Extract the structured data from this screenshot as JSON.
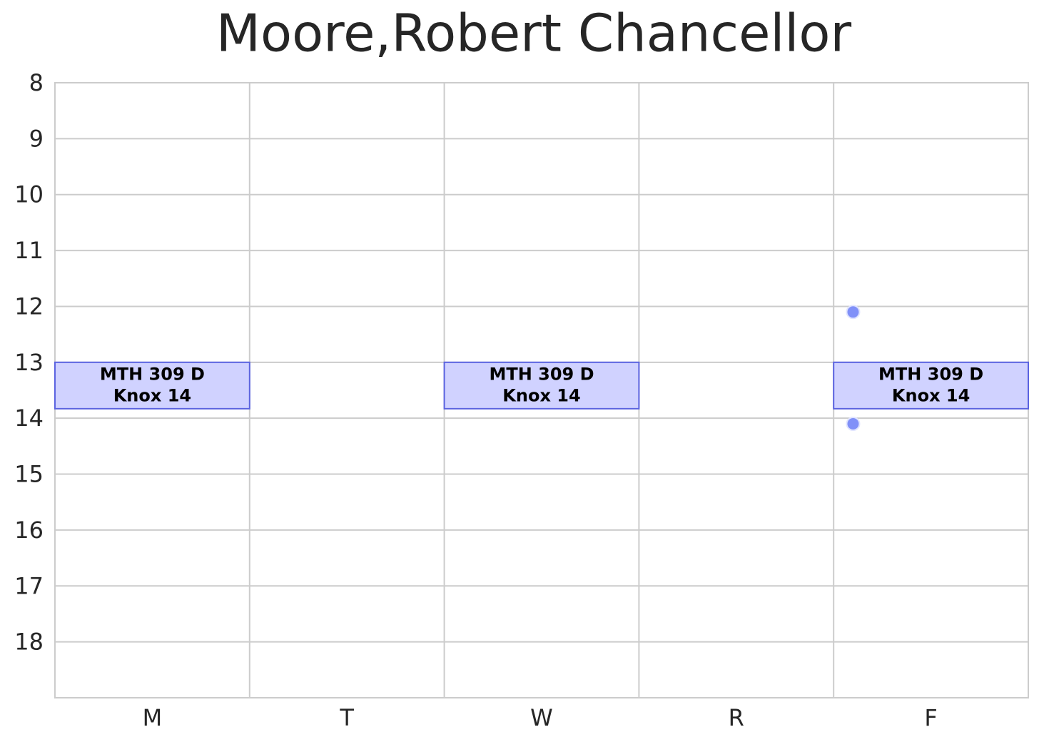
{
  "chart_data": {
    "type": "schedule",
    "title": "Moore,Robert Chancellor",
    "categories": [
      "M",
      "T",
      "W",
      "R",
      "F"
    ],
    "xlim": [
      0,
      5
    ],
    "ylim": [
      19,
      8
    ],
    "yticks": [
      8,
      9,
      10,
      11,
      12,
      13,
      14,
      15,
      16,
      17,
      18
    ],
    "grid": true,
    "event_fill": "#d0d2ff",
    "event_edge": "#5b63e0",
    "events": [
      {
        "day": 0,
        "start": 13,
        "end": 13.83,
        "label": [
          "MTH 309 D",
          "Knox 14"
        ]
      },
      {
        "day": 2,
        "start": 13,
        "end": 13.83,
        "label": [
          "MTH 309 D",
          "Knox 14"
        ]
      },
      {
        "day": 4,
        "start": 13,
        "end": 13.83,
        "label": [
          "MTH 309 D",
          "Knox 14"
        ]
      }
    ],
    "points": {
      "color": "#8090f8",
      "x": [
        4.1,
        4.1
      ],
      "y": [
        12.1,
        14.1
      ]
    }
  }
}
